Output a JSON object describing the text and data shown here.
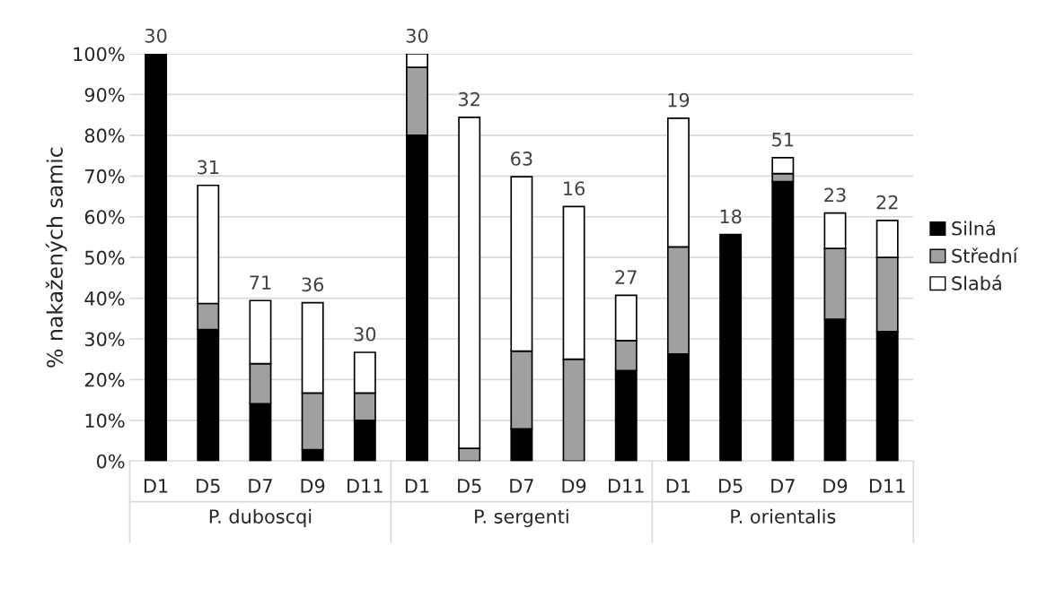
{
  "chart_data": {
    "type": "bar",
    "stacked": true,
    "ylabel": "% nakažených samic",
    "categories": [
      "D1",
      "D5",
      "D7",
      "D9",
      "D11",
      "D1",
      "D5",
      "D7",
      "D9",
      "D11",
      "D1",
      "D5",
      "D7",
      "D9",
      "D11"
    ],
    "series": [
      {
        "name": "Silná",
        "color": "#000000",
        "values": [
          100,
          32.3,
          14.1,
          2.8,
          10,
          80,
          0,
          7.9,
          0,
          22.2,
          26.3,
          55.6,
          68.6,
          34.8,
          31.8
        ]
      },
      {
        "name": "Střední",
        "color": "#a0a0a0",
        "values": [
          0,
          6.4,
          9.8,
          13.9,
          6.7,
          16.7,
          3.1,
          19.1,
          25,
          7.4,
          26.3,
          0,
          2.0,
          17.4,
          18.2
        ]
      },
      {
        "name": "Slabá",
        "color": "#ffffff",
        "values": [
          0,
          29.0,
          15.5,
          22.2,
          10,
          3.3,
          81.3,
          42.8,
          37.5,
          11.1,
          31.6,
          0,
          3.9,
          8.7,
          9.1
        ]
      }
    ],
    "annotations": [
      "30",
      "31",
      "71",
      "36",
      "30",
      "30",
      "32",
      "63",
      "16",
      "27",
      "19",
      "18",
      "51",
      "23",
      "22",
      "P. duboscqi",
      "P. sergenti",
      "P. orientalis"
    ],
    "ylim": [
      0,
      100
    ],
    "yticks": [
      {
        "value": 0,
        "label": "0%"
      },
      {
        "value": 10,
        "label": "10%"
      },
      {
        "value": 20,
        "label": "20%"
      },
      {
        "value": 30,
        "label": "30%"
      },
      {
        "value": 40,
        "label": "40%"
      },
      {
        "value": 50,
        "label": "50%"
      },
      {
        "value": 60,
        "label": "60%"
      },
      {
        "value": 70,
        "label": "70%"
      },
      {
        "value": 80,
        "label": "80%"
      },
      {
        "value": 90,
        "label": "90%"
      },
      {
        "value": 100,
        "label": "100%"
      }
    ],
    "grid": "y",
    "legend": "right"
  }
}
